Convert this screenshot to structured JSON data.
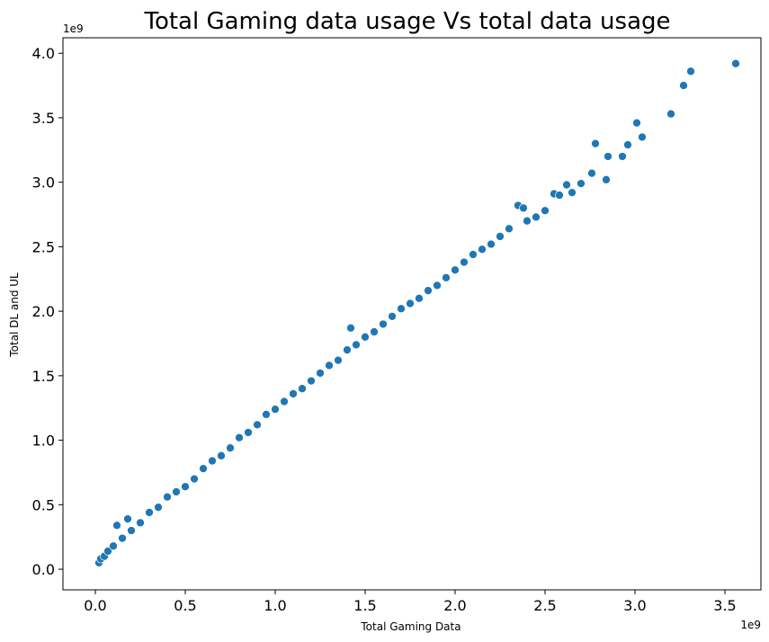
{
  "chart_data": {
    "type": "scatter",
    "title": "Total Gaming data usage Vs total data usage",
    "xlabel": "Total Gaming Data",
    "ylabel": "Total DL and UL",
    "x_offset_label": "1e9",
    "y_offset_label": "1e9",
    "xlim": [
      -0.18,
      3.7
    ],
    "ylim": [
      -0.16,
      4.12
    ],
    "x_ticks": [
      0.0,
      0.5,
      1.0,
      1.5,
      2.0,
      2.5,
      3.0,
      3.5
    ],
    "x_tick_labels": [
      "0.0",
      "0.5",
      "1.0",
      "1.5",
      "2.0",
      "2.5",
      "3.0",
      "3.5"
    ],
    "y_ticks": [
      0.0,
      0.5,
      1.0,
      1.5,
      2.0,
      2.5,
      3.0,
      3.5,
      4.0
    ],
    "y_tick_labels": [
      "0.0",
      "0.5",
      "1.0",
      "1.5",
      "2.0",
      "2.5",
      "3.0",
      "3.5",
      "4.0"
    ],
    "grid": false,
    "point_color": "#1f77b4",
    "points": [
      [
        0.02,
        0.05
      ],
      [
        0.03,
        0.08
      ],
      [
        0.05,
        0.1
      ],
      [
        0.07,
        0.14
      ],
      [
        0.1,
        0.18
      ],
      [
        0.12,
        0.34
      ],
      [
        0.15,
        0.24
      ],
      [
        0.18,
        0.39
      ],
      [
        0.2,
        0.3
      ],
      [
        0.25,
        0.36
      ],
      [
        0.3,
        0.44
      ],
      [
        0.35,
        0.48
      ],
      [
        0.4,
        0.56
      ],
      [
        0.45,
        0.6
      ],
      [
        0.5,
        0.64
      ],
      [
        0.55,
        0.7
      ],
      [
        0.6,
        0.78
      ],
      [
        0.65,
        0.84
      ],
      [
        0.7,
        0.88
      ],
      [
        0.75,
        0.94
      ],
      [
        0.8,
        1.02
      ],
      [
        0.85,
        1.06
      ],
      [
        0.9,
        1.12
      ],
      [
        0.95,
        1.2
      ],
      [
        1.0,
        1.24
      ],
      [
        1.05,
        1.3
      ],
      [
        1.1,
        1.36
      ],
      [
        1.15,
        1.4
      ],
      [
        1.2,
        1.46
      ],
      [
        1.25,
        1.52
      ],
      [
        1.3,
        1.58
      ],
      [
        1.35,
        1.62
      ],
      [
        1.42,
        1.87
      ],
      [
        1.4,
        1.7
      ],
      [
        1.45,
        1.74
      ],
      [
        1.5,
        1.8
      ],
      [
        1.55,
        1.84
      ],
      [
        1.6,
        1.9
      ],
      [
        1.65,
        1.96
      ],
      [
        1.7,
        2.02
      ],
      [
        1.75,
        2.06
      ],
      [
        1.8,
        2.1
      ],
      [
        1.85,
        2.16
      ],
      [
        1.9,
        2.2
      ],
      [
        1.95,
        2.26
      ],
      [
        2.0,
        2.32
      ],
      [
        2.05,
        2.38
      ],
      [
        2.1,
        2.44
      ],
      [
        2.15,
        2.48
      ],
      [
        2.2,
        2.52
      ],
      [
        2.25,
        2.58
      ],
      [
        2.3,
        2.64
      ],
      [
        2.35,
        2.82
      ],
      [
        2.38,
        2.8
      ],
      [
        2.4,
        2.7
      ],
      [
        2.45,
        2.73
      ],
      [
        2.5,
        2.78
      ],
      [
        2.55,
        2.91
      ],
      [
        2.58,
        2.9
      ],
      [
        2.62,
        2.98
      ],
      [
        2.65,
        2.92
      ],
      [
        2.7,
        2.99
      ],
      [
        2.78,
        3.3
      ],
      [
        2.85,
        3.2
      ],
      [
        2.93,
        3.2
      ],
      [
        2.96,
        3.29
      ],
      [
        3.01,
        3.46
      ],
      [
        3.04,
        3.35
      ],
      [
        3.2,
        3.53
      ],
      [
        3.27,
        3.75
      ],
      [
        3.31,
        3.86
      ],
      [
        3.56,
        3.92
      ],
      [
        2.84,
        3.02
      ],
      [
        2.76,
        3.07
      ]
    ]
  }
}
